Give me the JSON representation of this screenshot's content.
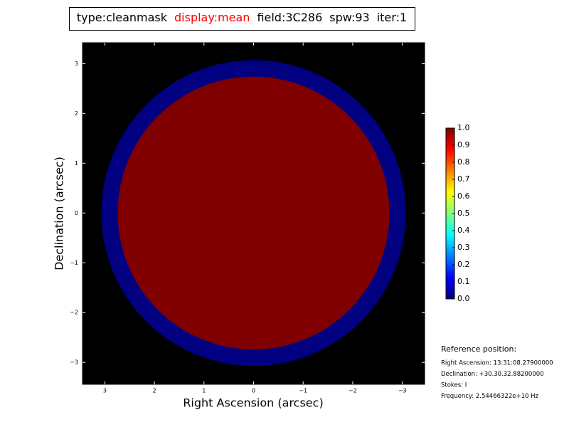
{
  "chart_data": {
    "type": "image",
    "title": [
      {
        "text": "type:cleanmask",
        "color": "#000000"
      },
      {
        "text": "display:mean",
        "color": "#ff0000"
      },
      {
        "text": "field:3C286",
        "color": "#000000"
      },
      {
        "text": "spw:93",
        "color": "#000000"
      },
      {
        "text": "iter:1",
        "color": "#000000"
      }
    ],
    "x_label": "Right Ascension (arcsec)",
    "y_label": "Declination (arcsec)",
    "xlim": [
      3.45,
      -3.45
    ],
    "ylim": [
      -3.44,
      3.42
    ],
    "xticks": [
      {
        "value": 3,
        "label": "3"
      },
      {
        "value": 2,
        "label": "2"
      },
      {
        "value": 1,
        "label": "1"
      },
      0,
      {
        "value": -1,
        "label": "−1"
      },
      {
        "value": -2,
        "label": "−2"
      },
      {
        "value": -3,
        "label": "−3"
      }
    ],
    "yticks": [
      {
        "value": -3,
        "label": "−3"
      },
      {
        "value": -2,
        "label": "−2"
      },
      {
        "value": -1,
        "label": "−1"
      },
      0,
      {
        "value": 1,
        "label": "1"
      },
      {
        "value": 2,
        "label": "2"
      },
      {
        "value": 3,
        "label": "3"
      }
    ],
    "background": "#000000",
    "colormap": "jet",
    "regions": [
      {
        "radius": 3.07,
        "value": 0
      },
      {
        "radius": 2.74,
        "value": 1
      }
    ],
    "clim": [
      0,
      1
    ],
    "colorbar_ticks": [
      {
        "value": 0,
        "label": "0.0"
      },
      {
        "value": 0.1,
        "label": "0.1"
      },
      {
        "value": 0.2,
        "label": "0.2"
      },
      {
        "value": 0.3,
        "label": "0.3"
      },
      {
        "value": 0.4,
        "label": "0.4"
      },
      {
        "value": 0.5,
        "label": "0.5"
      },
      {
        "value": 0.6,
        "label": "0.6"
      },
      {
        "value": 0.7,
        "label": "0.7"
      },
      {
        "value": 0.8,
        "label": "0.8"
      },
      {
        "value": 0.9,
        "label": "0.9"
      },
      {
        "value": 1,
        "label": "1.0"
      }
    ],
    "reference_title": "Reference position:",
    "reference_lines": [
      "Right Ascension: 13:31:08.27900000",
      "Declination: +30.30.32.88200000",
      "Stokes: I",
      "Frequency: 2.54466322e+10 Hz"
    ]
  }
}
